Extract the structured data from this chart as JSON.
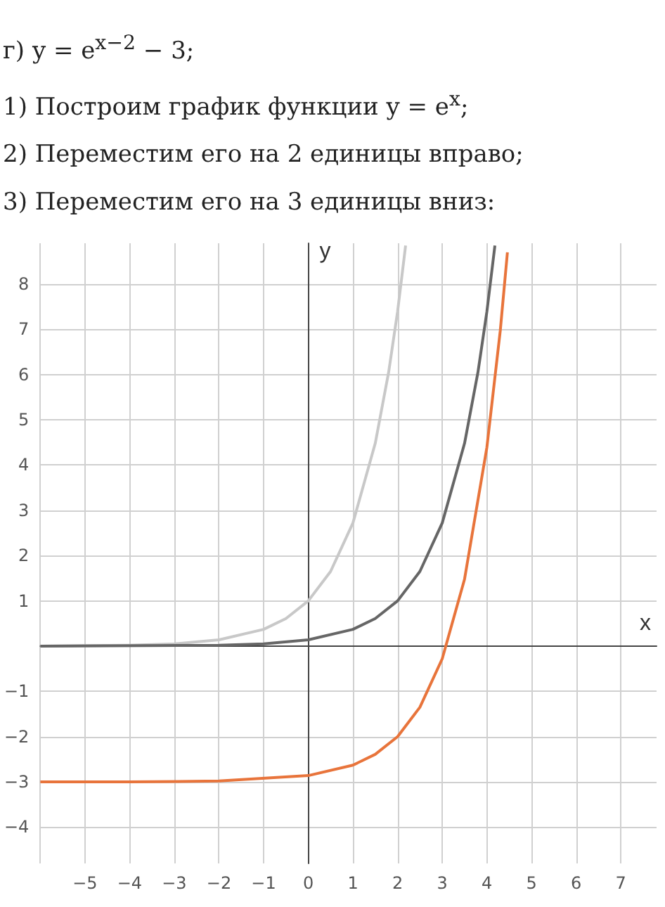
{
  "chart_data": {
    "type": "line",
    "title": "г) y = e$^{x−2}$ − 3;",
    "annotations": [
      "1) Построим график функции y = e$^{x}$;",
      "2) Переместим его на 2 единицы вправо;",
      "3) Переместим его на 3 единицы вниз:"
    ],
    "xlabel": "x",
    "ylabel": "y",
    "series": [
      {
        "color": "#c8c8c8",
        "x": [
          -6,
          -5,
          -4,
          -3,
          -2,
          -1,
          -0.5,
          0,
          0.5,
          1,
          1.5,
          1.8,
          2,
          2.18
        ],
        "values": [
          0,
          0.01,
          0.02,
          0.05,
          0.14,
          0.37,
          0.61,
          1,
          1.65,
          2.72,
          4.48,
          6.05,
          7.39,
          8.85
        ]
      },
      {
        "color": "#666666",
        "x": [
          -6,
          -2,
          -1,
          0,
          1,
          1.5,
          2,
          2.5,
          3,
          3.5,
          3.8,
          4,
          4.18
        ],
        "values": [
          0,
          0.02,
          0.05,
          0.14,
          0.37,
          0.61,
          1,
          1.65,
          2.72,
          4.48,
          6.05,
          7.39,
          8.85
        ]
      },
      {
        "color": "#e8743b",
        "x": [
          -6,
          -4,
          -2,
          0,
          1,
          1.5,
          2,
          2.5,
          3,
          3.5,
          4,
          4.3,
          4.46
        ],
        "values": [
          -3,
          -3,
          -2.98,
          -2.86,
          -2.63,
          -2.39,
          -2,
          -1.35,
          -0.28,
          1.48,
          4.39,
          6.97,
          8.7
        ]
      }
    ],
    "xlim": [
      -6,
      7.8
    ],
    "ylim": [
      -4.8,
      8.9
    ],
    "xticks": [
      -5,
      -4,
      -3,
      -2,
      -1,
      0,
      1,
      2,
      3,
      4,
      5,
      6,
      7
    ],
    "yticks": [
      -4,
      -3,
      -2,
      -1,
      1,
      2,
      3,
      4,
      5,
      6,
      7,
      8
    ],
    "grid": true,
    "marker": "none",
    "line_style": "solid"
  }
}
